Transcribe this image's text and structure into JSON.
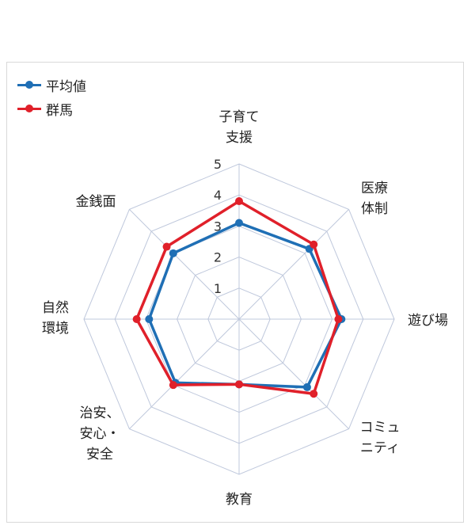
{
  "chart_data": {
    "type": "radar",
    "axes": [
      [
        "子育て",
        "支援"
      ],
      [
        "医療",
        "体制"
      ],
      [
        "遊び場"
      ],
      [
        "コミュ",
        "ニティ"
      ],
      [
        "教育"
      ],
      [
        "治安、",
        "安心・",
        "安全"
      ],
      [
        "自然",
        "環境"
      ],
      [
        "金銭面"
      ]
    ],
    "rlim": [
      0,
      5
    ],
    "ticks": [
      "1",
      "2",
      "3",
      "4",
      "5"
    ],
    "series": [
      {
        "name": "平均値",
        "color": "#1f6fb5",
        "values": [
          3.1,
          3.2,
          3.3,
          3.1,
          2.1,
          2.9,
          2.9,
          3.0
        ]
      },
      {
        "name": "群馬",
        "color": "#e0202a",
        "values": [
          3.8,
          3.4,
          3.2,
          3.4,
          2.1,
          3.0,
          3.3,
          3.3
        ]
      }
    ],
    "legend": "top-left",
    "grid": true
  }
}
